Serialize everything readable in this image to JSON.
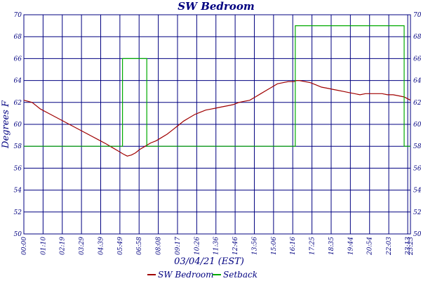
{
  "chart_data": {
    "type": "line",
    "title": "SW Bedroom",
    "xlabel": "03/04/21 (EST)",
    "ylabel": "Degrees F",
    "ylim": [
      50,
      70
    ],
    "yticks": [
      "50",
      "52",
      "54",
      "56",
      "58",
      "60",
      "62",
      "64",
      "66",
      "68",
      "70"
    ],
    "xticks": [
      "00:00",
      "01:10",
      "02:19",
      "03:29",
      "04:39",
      "05:49",
      "06:58",
      "08:08",
      "09:17",
      "10:26",
      "11:36",
      "12:46",
      "13:56",
      "15:06",
      "16:16",
      "17:25",
      "18:35",
      "19:44",
      "20:54",
      "22:03",
      "23:13",
      "23:23"
    ],
    "grid": true,
    "legend_position": "bottom",
    "series": [
      {
        "name": "SW Bedroom",
        "color": "#a00000",
        "step": false,
        "x": [
          0,
          30,
          60,
          90,
          120,
          150,
          180,
          210,
          240,
          270,
          300,
          320,
          340,
          360,
          375,
          390,
          405,
          420,
          440,
          460,
          480,
          500,
          520,
          540,
          560,
          580,
          600,
          620,
          640,
          660,
          680,
          700,
          720,
          740,
          760,
          780,
          800,
          820,
          840,
          860,
          880,
          900,
          920,
          940,
          960,
          980,
          990,
          1000,
          1020,
          1040,
          1060,
          1080,
          1100,
          1120,
          1140,
          1160,
          1180,
          1200,
          1220,
          1240,
          1260,
          1280,
          1300,
          1320,
          1340,
          1360,
          1380,
          1403
        ],
        "y": [
          62.2,
          62.0,
          61.4,
          61.0,
          60.6,
          60.2,
          59.8,
          59.4,
          59.0,
          58.6,
          58.2,
          57.9,
          57.6,
          57.3,
          57.1,
          57.2,
          57.4,
          57.7,
          58.0,
          58.3,
          58.5,
          58.8,
          59.1,
          59.5,
          59.9,
          60.3,
          60.6,
          60.9,
          61.1,
          61.3,
          61.4,
          61.5,
          61.6,
          61.7,
          61.8,
          62.0,
          62.1,
          62.2,
          62.5,
          62.8,
          63.1,
          63.4,
          63.7,
          63.8,
          63.9,
          63.9,
          64.0,
          64.0,
          63.9,
          63.8,
          63.6,
          63.4,
          63.3,
          63.2,
          63.1,
          63.0,
          62.9,
          62.8,
          62.7,
          62.8,
          62.8,
          62.8,
          62.8,
          62.7,
          62.7,
          62.6,
          62.5,
          62.2
        ]
      },
      {
        "name": "Setback",
        "color": "#00aa00",
        "step": true,
        "x": [
          0,
          358,
          358,
          446,
          446,
          985,
          985,
          1380,
          1380,
          1403
        ],
        "y": [
          58,
          58,
          66,
          66,
          58,
          58,
          69,
          69,
          58,
          58
        ]
      }
    ]
  }
}
